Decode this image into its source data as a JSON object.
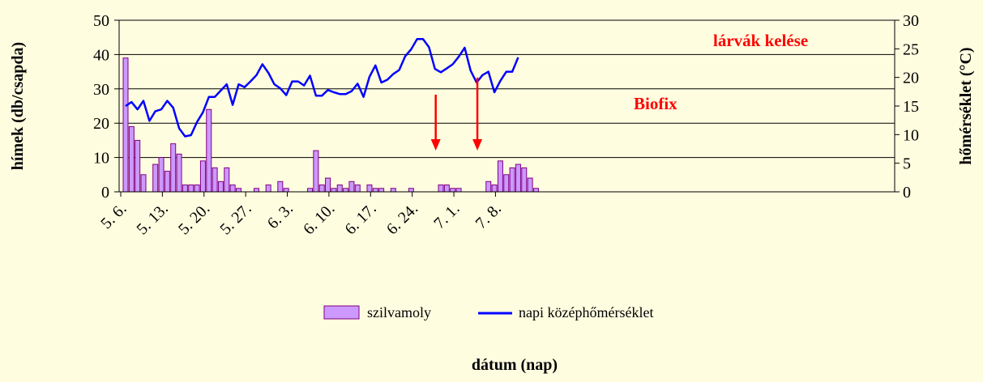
{
  "chart_data": {
    "type": "bar+line",
    "xlabel": "dátum (nap)",
    "ylabel_left": "hímek (db/csapda)",
    "ylabel_right": "hőmérséklet (°C)",
    "ylim_left": [
      0,
      50
    ],
    "yticks_left": [
      "0",
      "10",
      "20",
      "30",
      "40",
      "50"
    ],
    "ylim_right": [
      0,
      30
    ],
    "yticks_right": [
      "0",
      "5",
      "10",
      "15",
      "20",
      "25",
      "30"
    ],
    "x_tick_labels": [
      "5. 6.",
      "5. 13.",
      "5. 20.",
      "5. 27.",
      "6. 3.",
      "6. 10.",
      "6. 17.",
      "6. 24.",
      "7. 1.",
      "7. 8."
    ],
    "grid": "horizontal",
    "legend_position": "bottom",
    "colors": {
      "bar_fill": "#cc99ff",
      "bar_stroke": "#800080",
      "line": "#0000ff",
      "annotation": "#ff0000"
    },
    "series": [
      {
        "name": "szilvamoly",
        "kind": "bar",
        "axis": "left",
        "values": [
          39,
          19,
          15,
          5,
          0,
          8,
          10,
          6,
          14,
          11,
          2,
          2,
          2,
          9,
          24,
          7,
          3,
          7,
          2,
          1,
          0,
          0,
          1,
          0,
          2,
          0,
          3,
          1,
          0,
          0,
          0,
          1,
          12,
          2,
          4,
          1,
          2,
          1,
          3,
          2,
          0,
          2,
          1,
          1,
          0,
          1,
          0,
          0,
          1,
          0,
          0,
          0,
          0,
          2,
          2,
          1,
          1,
          0,
          0,
          0,
          0,
          3,
          2,
          9,
          5,
          7,
          8,
          7,
          4,
          1
        ]
      },
      {
        "name": "napi középhőmérséklet",
        "kind": "line",
        "axis": "right",
        "values": [
          15,
          15.7,
          14.4,
          15.9,
          12.4,
          14.1,
          14.4,
          15.9,
          14.7,
          11.1,
          9.7,
          9.9,
          12.2,
          13.9,
          16.6,
          16.6,
          17.7,
          18.8,
          15.2,
          18.8,
          18.3,
          19.3,
          20.4,
          22.3,
          20.8,
          18.8,
          18.1,
          16.9,
          19.3,
          19.3,
          18.6,
          20.3,
          16.8,
          16.8,
          17.8,
          17.4,
          17.1,
          17.1,
          17.6,
          18.9,
          16.6,
          20.1,
          22.1,
          19.1,
          19.6,
          20.6,
          21.3,
          23.7,
          24.9,
          26.7,
          26.7,
          25.3,
          21.5,
          20.9,
          21.6,
          22.3,
          23.6,
          25.2,
          21.2,
          19.1,
          20.4,
          21,
          17.4,
          19.4,
          21,
          21,
          23.5
        ]
      }
    ],
    "annotations": [
      {
        "label": "Biofix",
        "day_index": 52
      },
      {
        "label": "lárvák kelése",
        "day_index": 59
      }
    ]
  }
}
